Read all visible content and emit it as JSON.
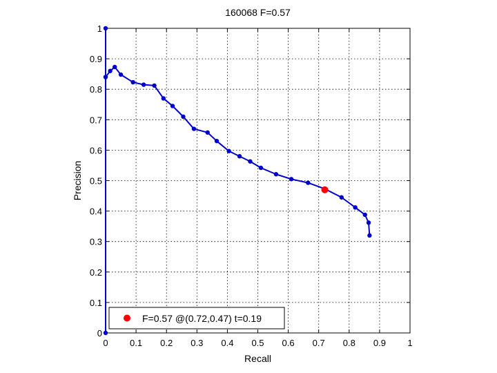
{
  "chart_data": {
    "type": "line",
    "title": "160068 F=0.57",
    "xlabel": "Recall",
    "ylabel": "Precision",
    "xlim": [
      0,
      1
    ],
    "ylim": [
      0,
      1
    ],
    "xticks": [
      "0",
      "0.1",
      "0.2",
      "0.3",
      "0.4",
      "0.5",
      "0.6",
      "0.7",
      "0.8",
      "0.9",
      "1"
    ],
    "yticks": [
      "0",
      "0.1",
      "0.2",
      "0.3",
      "0.4",
      "0.5",
      "0.6",
      "0.7",
      "0.8",
      "0.9",
      "1"
    ],
    "grid": true,
    "legend_position": "bottom-left",
    "series": [
      {
        "color": "#0000cc",
        "x": [
          0.0,
          0.0,
          0.0,
          0.0,
          0.015,
          0.03,
          0.05,
          0.09,
          0.125,
          0.16,
          0.19,
          0.22,
          0.255,
          0.29,
          0.335,
          0.365,
          0.405,
          0.44,
          0.475,
          0.51,
          0.56,
          0.61,
          0.665,
          0.72,
          0.775,
          0.82,
          0.852,
          0.864,
          0.867
        ],
        "y": [
          1.0,
          0.0,
          0.84,
          0.84,
          0.86,
          0.873,
          0.848,
          0.823,
          0.815,
          0.812,
          0.77,
          0.745,
          0.71,
          0.67,
          0.658,
          0.63,
          0.597,
          0.58,
          0.563,
          0.542,
          0.521,
          0.505,
          0.493,
          0.473,
          0.445,
          0.412,
          0.388,
          0.362,
          0.32
        ]
      }
    ],
    "best_point": {
      "recall": 0.72,
      "precision": 0.47,
      "color": "#ff0000"
    },
    "legend": {
      "text": "F=0.57 @(0.72,0.47) t=0.19"
    }
  }
}
